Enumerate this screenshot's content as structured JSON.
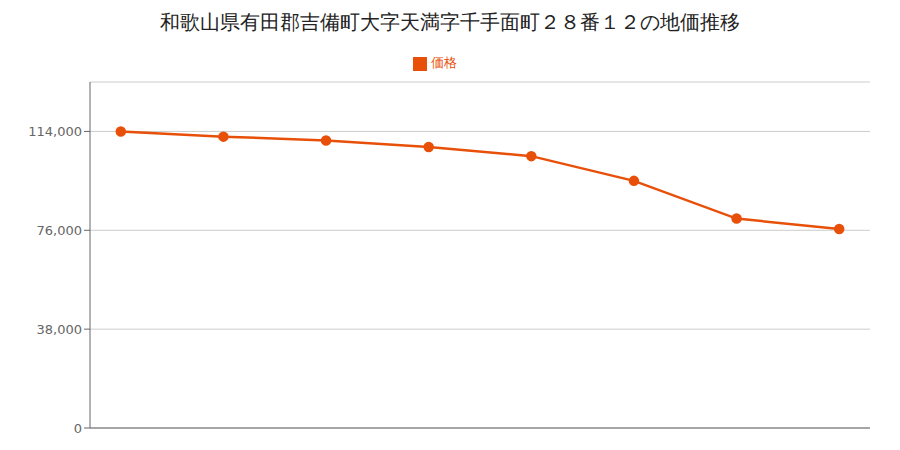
{
  "chart_data": {
    "type": "line",
    "title": "和歌山県有田郡吉備町大字天満字千手面町２８番１２の地価推移",
    "x": [
      0,
      1,
      2,
      3,
      4,
      5,
      6,
      7
    ],
    "series": [
      {
        "name": "価格",
        "color": "#E8500A",
        "marker": "circle",
        "values": [
          114000,
          112000,
          110500,
          108000,
          104500,
          95000,
          80500,
          76500
        ]
      }
    ],
    "xlim": [
      -0.3,
      7.3
    ],
    "ylim": [
      0,
      133000
    ],
    "yticks": [
      0,
      {
        "value": 38000,
        "label": "38,000"
      },
      {
        "value": 76000,
        "label": "76,000"
      },
      {
        "value": 114000,
        "label": "114,000"
      }
    ],
    "grid": true,
    "legend": "top",
    "tick_labels": "y"
  }
}
